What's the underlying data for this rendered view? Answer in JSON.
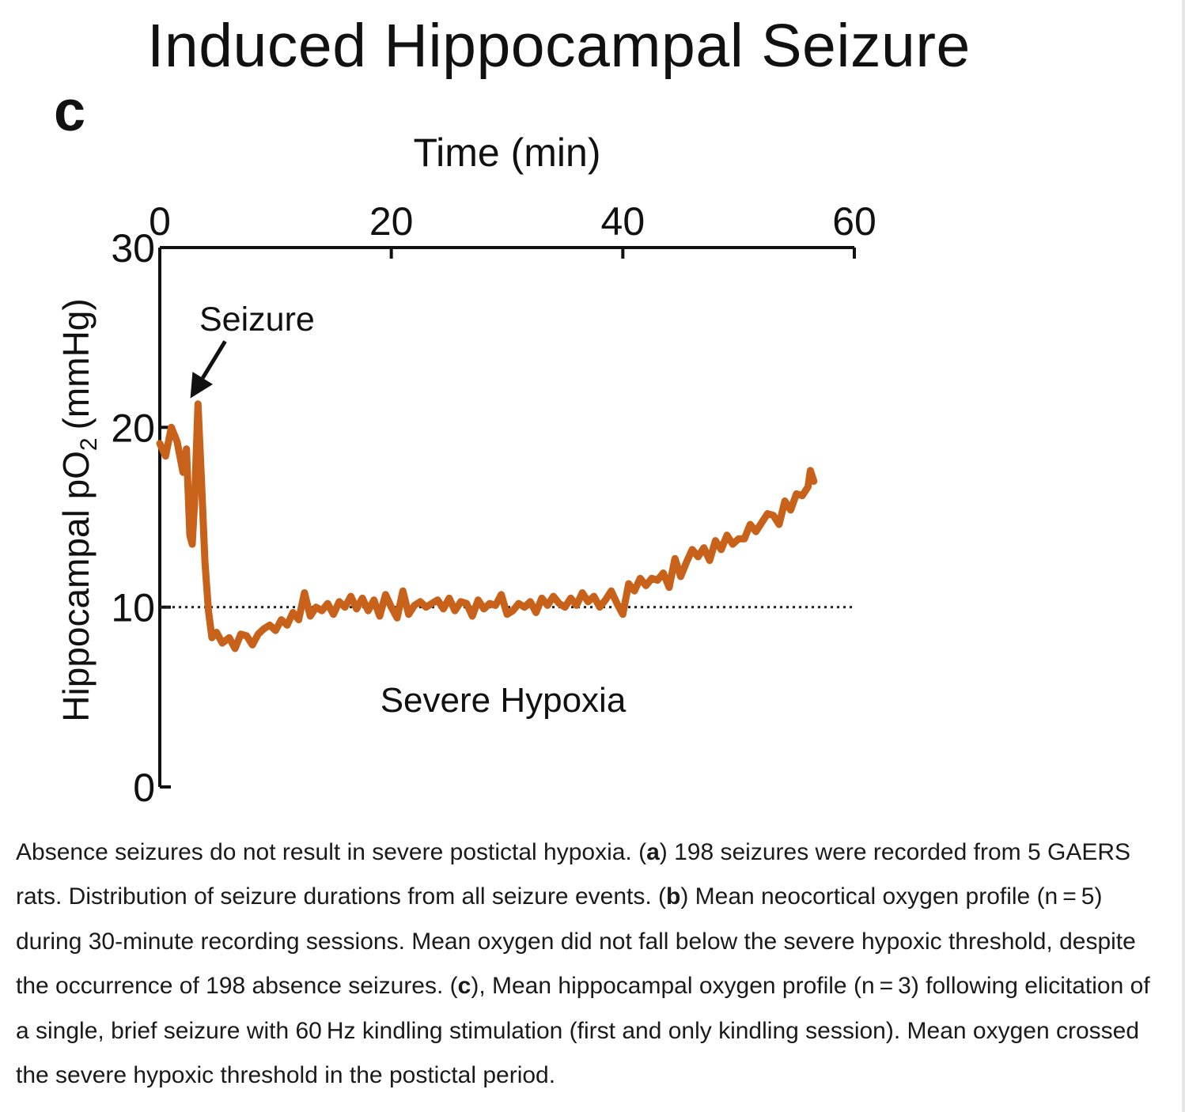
{
  "figure": {
    "title": "Induced Hippocampal Seizure",
    "panel_letter": "c"
  },
  "chart_data": {
    "type": "line",
    "title": "Induced Hippocampal Seizure",
    "xlabel": "Time (min)",
    "ylabel_main": "Hippocampal pO",
    "ylabel_sub": "2",
    "ylabel_unit": "(mmHg)",
    "x_axis_position": "top",
    "xlim": [
      0,
      60
    ],
    "ylim": [
      0,
      30
    ],
    "x_ticks": [
      0,
      20,
      40,
      60
    ],
    "y_ticks": [
      0,
      10,
      20,
      30
    ],
    "grid": false,
    "legend": "none",
    "threshold": {
      "y": 10,
      "style": "dotted"
    },
    "annotations": [
      {
        "text": "Seizure",
        "points_to": {
          "x": 2.5,
          "y": 21
        }
      },
      {
        "text": "Severe Hypoxia"
      }
    ],
    "series": [
      {
        "color": "#C8611A",
        "x": [
          0,
          0.5,
          1.0,
          1.5,
          2.0,
          2.3,
          2.6,
          2.8,
          3.0,
          3.3,
          3.6,
          3.9,
          4.2,
          4.5,
          4.9,
          5.4,
          6.0,
          6.5,
          7.0,
          7.5,
          8.0,
          8.5,
          9.0,
          9.5,
          10,
          10.5,
          11,
          11.5,
          12,
          12.5,
          13,
          13.5,
          14,
          14.5,
          15,
          15.5,
          16,
          16.5,
          17,
          17.5,
          18,
          18.5,
          19,
          19.5,
          20,
          20.5,
          21,
          21.5,
          22,
          22.5,
          23,
          23.5,
          24,
          24.5,
          25,
          25.5,
          26,
          26.5,
          27,
          27.5,
          28,
          28.5,
          29,
          29.5,
          30,
          30.5,
          31,
          31.5,
          32,
          32.5,
          33,
          33.5,
          34,
          34.5,
          35,
          35.5,
          36,
          36.5,
          37,
          37.5,
          38,
          38.5,
          39,
          39.5,
          40,
          40.5,
          41,
          41.5,
          42,
          42.5,
          43,
          43.5,
          44,
          44.5,
          45,
          45.5,
          46,
          46.5,
          47,
          47.5,
          48,
          48.5,
          49,
          49.5,
          50,
          50.5,
          51,
          51.5,
          52,
          52.5,
          53,
          53.5,
          54,
          54.5,
          55,
          55.5,
          56,
          56.2,
          56.5
        ],
        "values": [
          19.1,
          18.4,
          20.0,
          19.2,
          17.5,
          18.8,
          14.0,
          13.5,
          15.8,
          21.3,
          17.0,
          12.5,
          9.8,
          8.3,
          8.6,
          8.0,
          8.3,
          7.7,
          8.5,
          8.4,
          7.9,
          8.5,
          8.8,
          9.0,
          8.7,
          9.3,
          9.0,
          9.7,
          9.3,
          10.8,
          9.5,
          10.0,
          9.8,
          10.2,
          9.6,
          10.3,
          10.0,
          10.6,
          9.9,
          10.5,
          9.8,
          10.4,
          9.5,
          10.7,
          10.0,
          9.4,
          10.9,
          9.6,
          10.1,
          10.3,
          10.0,
          10.2,
          10.4,
          9.9,
          10.5,
          9.8,
          10.3,
          10.2,
          9.5,
          10.4,
          9.9,
          10.2,
          10.1,
          10.7,
          9.6,
          9.8,
          10.2,
          10.0,
          10.3,
          9.7,
          10.5,
          10.1,
          10.6,
          10.2,
          10.0,
          10.5,
          10.1,
          10.8,
          10.3,
          10.6,
          10.0,
          10.4,
          10.9,
          10.2,
          9.6,
          11.3,
          10.9,
          11.6,
          11.2,
          11.6,
          11.5,
          11.9,
          11.1,
          12.7,
          11.7,
          12.5,
          13.2,
          12.8,
          13.3,
          12.6,
          13.7,
          13.2,
          14.0,
          13.5,
          13.8,
          13.8,
          14.6,
          14.2,
          14.7,
          15.2,
          15.1,
          14.6,
          15.9,
          15.4,
          16.3,
          16.2,
          16.7,
          17.6,
          17.0
        ]
      }
    ]
  },
  "caption": {
    "intro": "Absence seizures do not result in severe postictal hypoxia. (",
    "label_a": "a",
    "text_a": ") 198 seizures were recorded from 5 GAERS rats. Distribution of seizure durations from all seizure events. (",
    "label_b": "b",
    "text_b": ") Mean neocortical oxygen profile (n = 5) during 30-minute recording sessions. Mean oxygen did not fall below the severe hypoxic threshold, despite the occurrence of 198 absence seizures. (",
    "label_c": "c",
    "text_c": "), Mean hippocampal oxygen profile (n = 3) following elicitation of a single, brief seizure with 60 Hz kindling stimulation (first and only kindling session). Mean oxygen crossed the severe hypoxic threshold in the postictal period."
  }
}
